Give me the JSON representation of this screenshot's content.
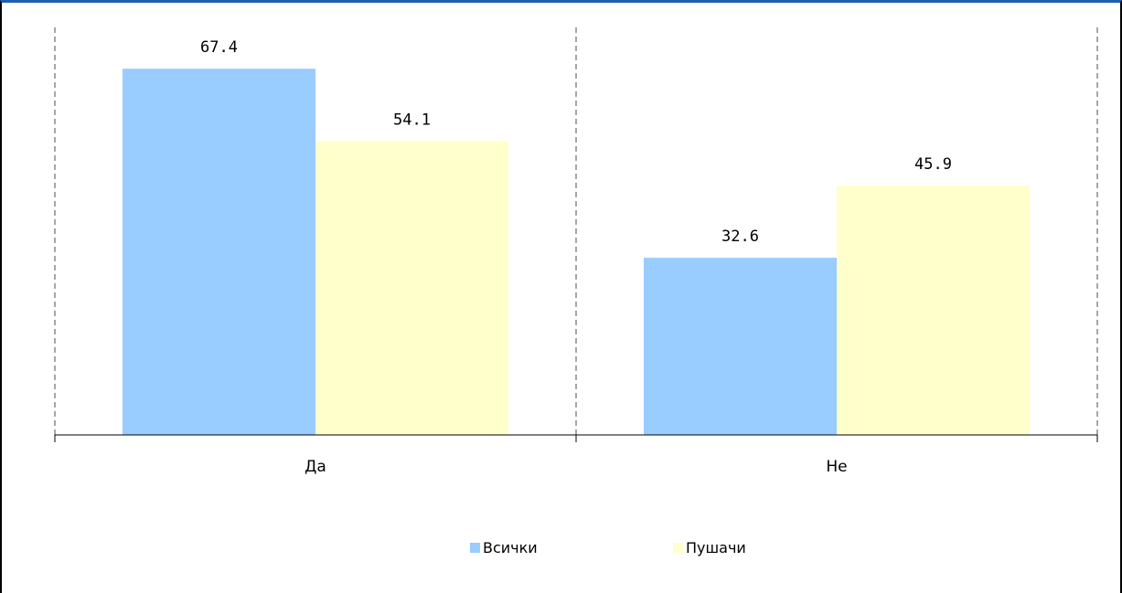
{
  "chart_data": {
    "type": "bar",
    "categories": [
      "Да",
      "Не"
    ],
    "series": [
      {
        "name": "Всички",
        "values": [
          67.4,
          32.6
        ]
      },
      {
        "name": "Пушачи",
        "values": [
          54.1,
          45.9
        ]
      }
    ],
    "ylim": [
      0,
      75
    ],
    "grid": false,
    "legend": "bottom",
    "colors": [
      "#99ccff",
      "#ffffcc"
    ]
  }
}
